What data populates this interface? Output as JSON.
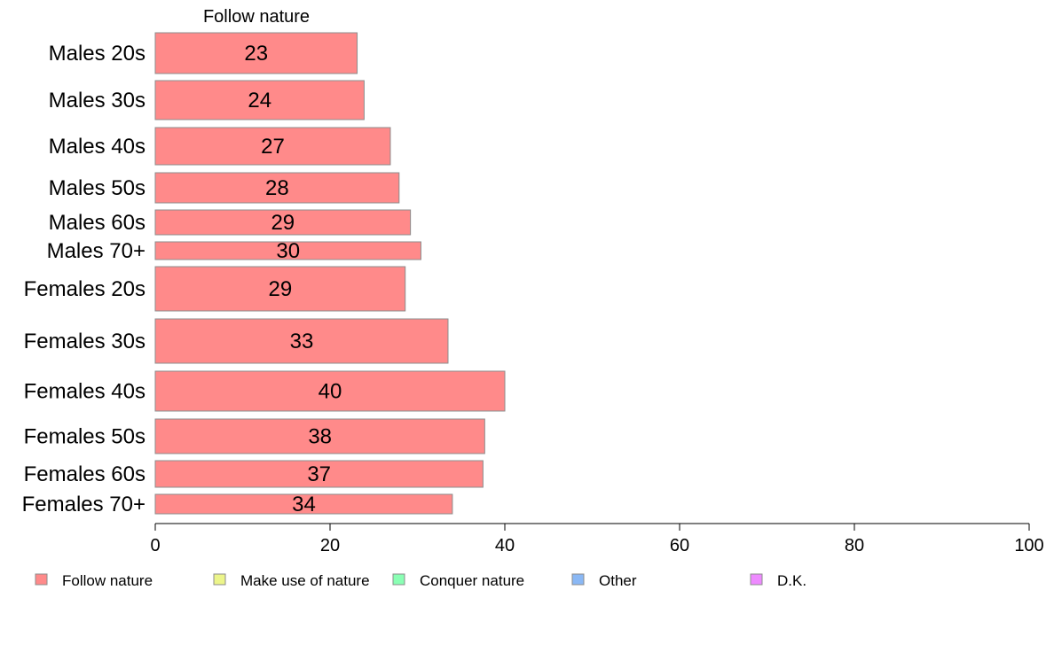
{
  "chart_data": {
    "type": "bar",
    "orientation": "horizontal",
    "stacked": true,
    "panel_title": "Follow nature",
    "categories": [
      "Males 20s",
      "Males 30s",
      "Males 40s",
      "Males 50s",
      "Males 60s",
      "Males 70+",
      "Females 20s",
      "Females 30s",
      "Females 40s",
      "Females 50s",
      "Females 60s",
      "Females 70+"
    ],
    "series": [
      {
        "name": "Follow nature",
        "color": "#ff8a8a",
        "values": [
          23.1,
          23.9,
          26.9,
          27.9,
          29.2,
          30.4,
          28.6,
          33.5,
          40.0,
          37.7,
          37.5,
          34.0
        ],
        "labels": [
          "23",
          "24",
          "27",
          "28",
          "29",
          "30",
          "29",
          "33",
          "40",
          "38",
          "37",
          "34"
        ]
      }
    ],
    "legend": [
      {
        "name": "Follow nature",
        "color": "#ff8a8a"
      },
      {
        "name": "Make use of nature",
        "color": "#ecf58a"
      },
      {
        "name": "Conquer nature",
        "color": "#8affb4"
      },
      {
        "name": "Other",
        "color": "#8ab8f5"
      },
      {
        "name": "D.K.",
        "color": "#ee8aff"
      }
    ],
    "xlim": [
      0,
      100
    ],
    "xticks": [
      0,
      20,
      40,
      60,
      80,
      100
    ],
    "legend_position": "bottom",
    "grid": false,
    "xlabel": "",
    "ylabel": ""
  }
}
